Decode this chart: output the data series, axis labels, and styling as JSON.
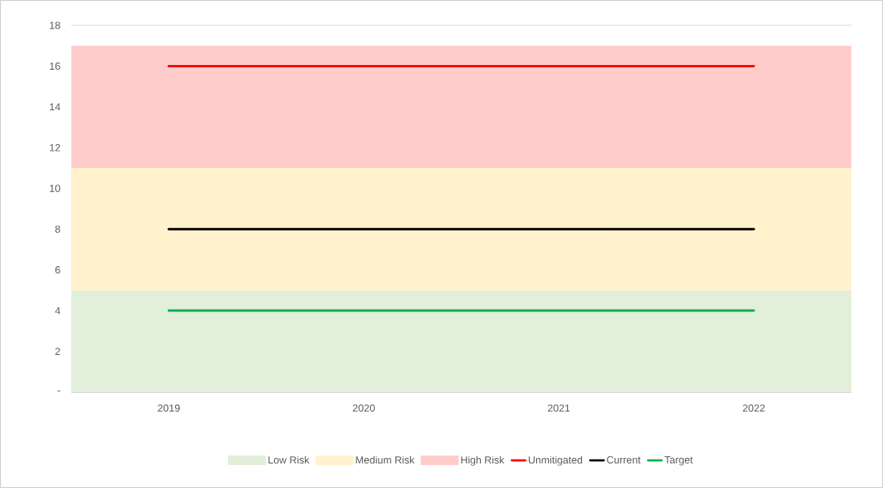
{
  "chart_data": {
    "type": "line",
    "categories": [
      "2019",
      "2020",
      "2021",
      "2022"
    ],
    "series": [
      {
        "name": "Unmitigated",
        "color": "#ff0000",
        "values": [
          16,
          16,
          16,
          16
        ]
      },
      {
        "name": "Current",
        "color": "#000000",
        "values": [
          8,
          8,
          8,
          8
        ]
      },
      {
        "name": "Target",
        "color": "#00b050",
        "values": [
          4,
          4,
          4,
          4
        ]
      }
    ],
    "bands": [
      {
        "axis": "y",
        "from": 0,
        "to": 5,
        "label": "Low Risk",
        "color": "#e2efda"
      },
      {
        "axis": "y",
        "from": 5,
        "to": 11,
        "label": "Medium Risk",
        "color": "#fff2cc"
      },
      {
        "axis": "y",
        "from": 11,
        "to": 17,
        "label": "High Risk",
        "color": "#ffcccc"
      }
    ],
    "ylim": [
      0,
      18
    ],
    "yticks": [
      {
        "value": 0,
        "label": "-"
      },
      2,
      4,
      6,
      8,
      10,
      12,
      14,
      16,
      18
    ],
    "grid": "y",
    "legend": "bottom",
    "marker": "none",
    "line_style": "solid"
  }
}
